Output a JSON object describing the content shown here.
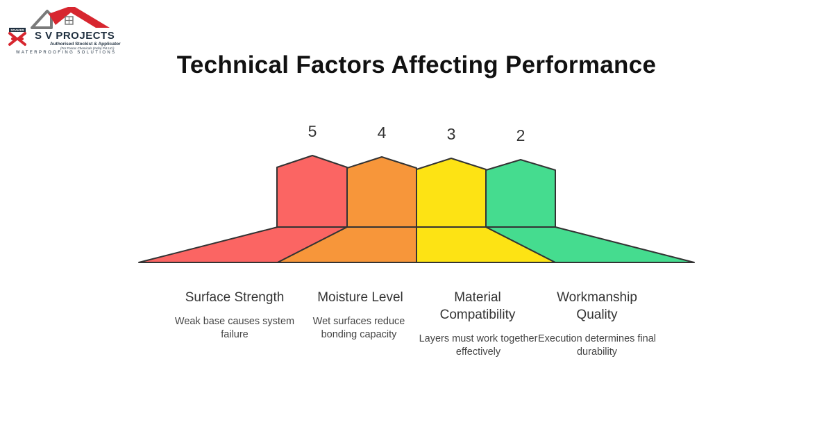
{
  "logo": {
    "small_text": "SOAKER",
    "name": "S V PROJECTS",
    "sub1": "Authorised Stockist & Applicator",
    "sub2": "(For Fosroc Chemicals (India) Pvt.Ltd.)",
    "tagline": "WATERPROOFING SOLUTIONS",
    "roof_color": "#d7262f",
    "frame_color": "#7a7a7a"
  },
  "title": "Technical Factors Affecting Performance",
  "factors": [
    {
      "value": "5",
      "label": "Surface Strength",
      "description": "Weak base causes system failure",
      "color": "#fb6563"
    },
    {
      "value": "4",
      "label": "Moisture Level",
      "description": "Wet surfaces reduce bonding capacity",
      "color": "#f7963a"
    },
    {
      "value": "3",
      "label": "Material Compatibility",
      "description": "Layers must work together effectively",
      "color": "#fde314"
    },
    {
      "value": "2",
      "label": "Workmanship Quality",
      "description": "Execution determines final durability",
      "color": "#45dc8f"
    }
  ]
}
